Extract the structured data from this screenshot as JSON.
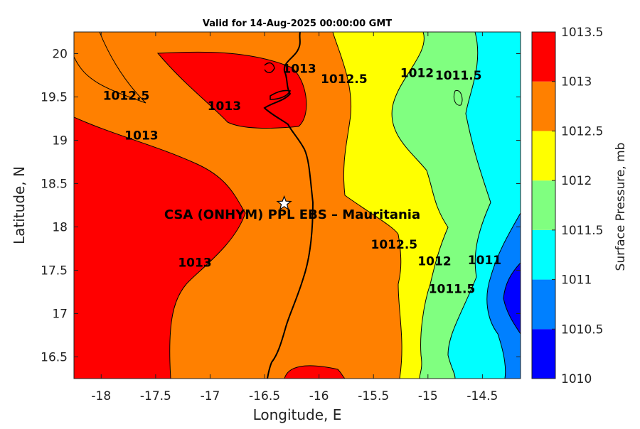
{
  "chart_data": {
    "type": "contour",
    "title": "Valid for 14-Aug-2025 00:00:00 GMT",
    "xlabel": "Longitude, E",
    "ylabel": "Latitude, N",
    "xlim": [
      -18.25,
      -14.15
    ],
    "ylim": [
      16.25,
      20.25
    ],
    "x_ticks": [
      -18,
      -17.5,
      -17,
      -16.5,
      -16,
      -15.5,
      -15,
      -14.5
    ],
    "x_tick_labels": [
      "-18",
      "-17.5",
      "-17",
      "-16.5",
      "-16",
      "-15.5",
      "-15",
      "-14.5"
    ],
    "y_ticks": [
      16.5,
      17,
      17.5,
      18,
      18.5,
      19,
      19.5,
      20
    ],
    "y_tick_labels": [
      "16.5",
      "17",
      "17.5",
      "18",
      "18.5",
      "19",
      "19.5",
      "20"
    ],
    "colorbar": {
      "label": "Surface Pressure, mb",
      "levels": [
        1010,
        1010.5,
        1011,
        1011.5,
        1012,
        1012.5,
        1013,
        1013.5
      ],
      "tick_labels": [
        "1010",
        "1010.5",
        "1011",
        "1011.5",
        "1012",
        "1012.5",
        "1013",
        "1013.5"
      ],
      "colors": [
        "#0000ff",
        "#0080ff",
        "#00ffff",
        "#80ff80",
        "#ffff00",
        "#ff8000",
        "#ff0000",
        "#800000"
      ]
    },
    "contour_labels": [
      {
        "text": "1012.5",
        "x": -17.77,
        "y": 19.51
      },
      {
        "text": "1013",
        "x": -17.63,
        "y": 19.05
      },
      {
        "text": "1013",
        "x": -16.18,
        "y": 19.82
      },
      {
        "text": "1013",
        "x": -16.87,
        "y": 19.39
      },
      {
        "text": "1012.5",
        "x": -15.77,
        "y": 19.7
      },
      {
        "text": "1012",
        "x": -15.1,
        "y": 19.77
      },
      {
        "text": "1011.5",
        "x": -14.72,
        "y": 19.74
      },
      {
        "text": "1013",
        "x": -17.14,
        "y": 17.58
      },
      {
        "text": "1012.5",
        "x": -15.31,
        "y": 17.79
      },
      {
        "text": "1012",
        "x": -14.94,
        "y": 17.6
      },
      {
        "text": "1011.5",
        "x": -14.78,
        "y": 17.28
      },
      {
        "text": "1011",
        "x": -14.48,
        "y": 17.61
      }
    ],
    "site": {
      "name": "CSA (ONHYM) PPL EBS  – Mauritania",
      "lon": -16.32,
      "lat": 18.27
    }
  }
}
